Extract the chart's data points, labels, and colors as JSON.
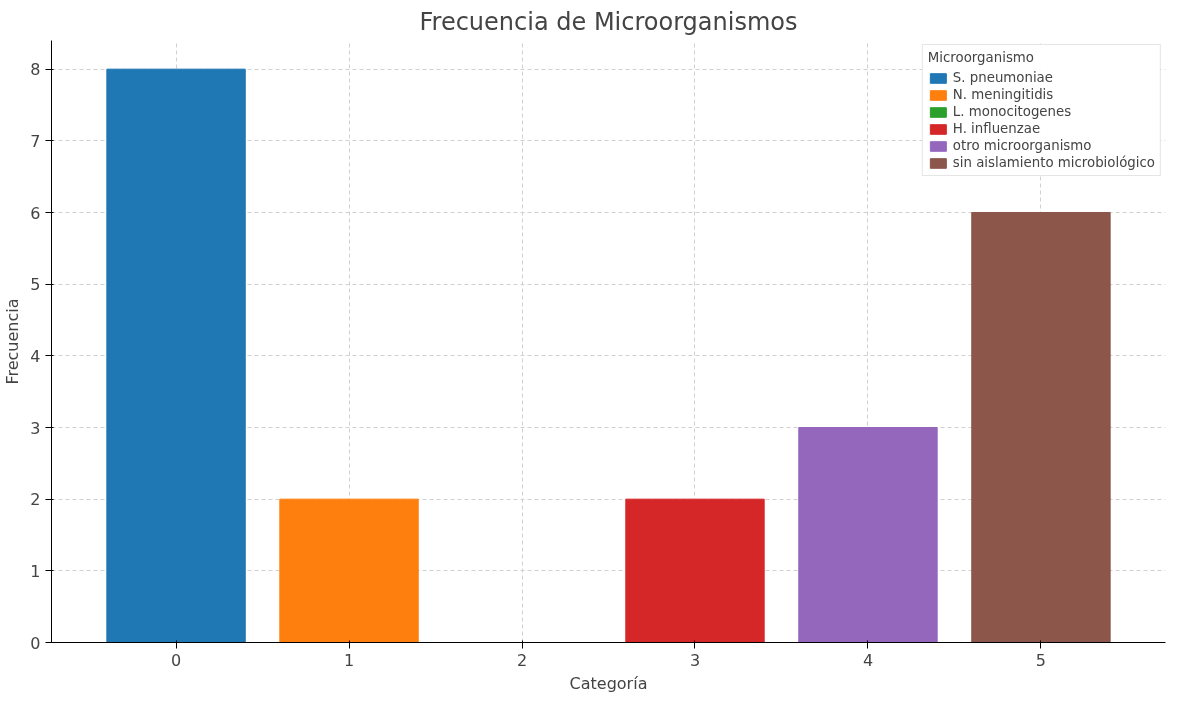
{
  "chart_data": {
    "type": "bar",
    "title": "Frecuencia de Microorganismos",
    "xlabel": "Categoría",
    "ylabel": "Frecuencia",
    "legend_title": "Microorganismo",
    "series": [
      {
        "name": "S. pneumoniae",
        "color": "#1f77b4",
        "x": [
          0
        ],
        "values": [
          8
        ]
      },
      {
        "name": "N. meningitidis",
        "color": "#ff7f0e",
        "x": [
          1
        ],
        "values": [
          2
        ]
      },
      {
        "name": "L. monocitogenes",
        "color": "#2ca02c",
        "x": [
          2
        ],
        "values": [
          0
        ]
      },
      {
        "name": "H. influenzae",
        "color": "#d62728",
        "x": [
          3
        ],
        "values": [
          2
        ]
      },
      {
        "name": "otro microorganismo",
        "color": "#9467bd",
        "x": [
          4
        ],
        "values": [
          3
        ]
      },
      {
        "name": "sin aislamiento microbiológico",
        "color": "#8c564b",
        "x": [
          5
        ],
        "values": [
          6
        ]
      }
    ],
    "xlim": [
      -0.72,
      5.72
    ],
    "ylim": [
      0,
      8.4
    ],
    "xticks": [
      0,
      1,
      2,
      3,
      4,
      5
    ],
    "yticks": [
      0,
      1,
      2,
      3,
      4,
      5,
      6,
      7,
      8
    ],
    "grid": true,
    "legend": "top right"
  }
}
